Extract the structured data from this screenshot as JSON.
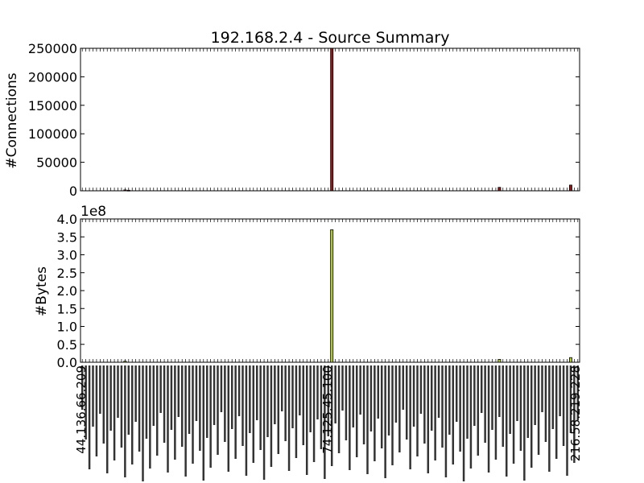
{
  "chart_data": [
    {
      "type": "bar",
      "title": "192.168.2.4 - Source Summary",
      "ylabel": "#Connections",
      "ylim": [
        0,
        250000
      ],
      "yticks": [
        "0",
        "50000",
        "100000",
        "150000",
        "200000",
        "250000"
      ],
      "bar_color": "#8b1a1a",
      "category_count": 140,
      "series": [
        {
          "values": [
            {
              "index": 12,
              "value": 1500
            },
            {
              "index": 13,
              "value": 1000
            },
            {
              "index": 70,
              "value": 250000
            },
            {
              "index": 117,
              "value": 6000
            },
            {
              "index": 137,
              "value": 10000
            }
          ]
        }
      ]
    },
    {
      "type": "bar",
      "ylabel": "#Bytes",
      "y_offset_label": "1e8",
      "ylim": [
        0,
        4.0
      ],
      "yticks": [
        "0.0",
        "0.5",
        "1.0",
        "1.5",
        "2.0",
        "2.5",
        "3.0",
        "3.5",
        "4.0"
      ],
      "bar_color": "#b5cc3d",
      "category_count": 140,
      "series": [
        {
          "values": [
            {
              "index": 12,
              "value": 0.03
            },
            {
              "index": 70,
              "value": 3.7
            },
            {
              "index": 117,
              "value": 0.08
            },
            {
              "index": 137,
              "value": 0.13
            }
          ]
        }
      ]
    }
  ],
  "x_tick_labels": {
    "first": "44.136.66.209",
    "near_70": "74.125.45.100",
    "last": "216.58.219.228"
  }
}
